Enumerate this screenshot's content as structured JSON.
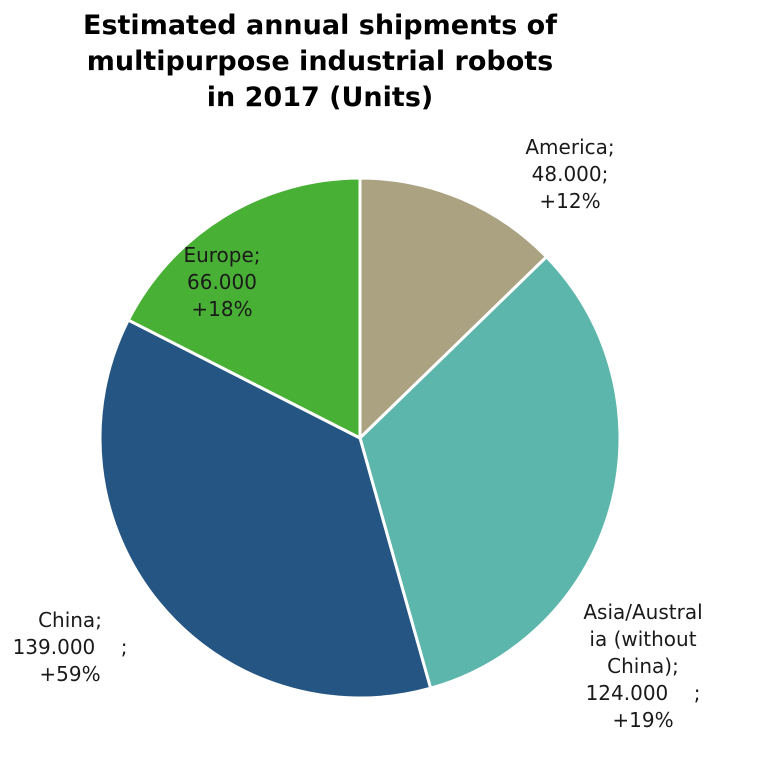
{
  "chart_data": {
    "type": "pie",
    "title": "Estimated annual shipments of multipurpose industrial robots in 2017 (Units)",
    "title_lines": [
      "Estimated annual shipments of",
      "multipurpose industrial robots",
      "in 2017 (Units)"
    ],
    "slices": [
      {
        "category": "America",
        "value": 48000,
        "value_label": "48.000",
        "change": "+12%",
        "color": "#aba282",
        "label_lines": [
          "America;",
          "48.000;",
          "+12%"
        ]
      },
      {
        "category": "Asia/Australia (without China)",
        "value": 124000,
        "value_label": "124.000",
        "change": "+19%",
        "color": "#5cb6ab",
        "label_lines": [
          "Asia/Austral",
          "ia (without",
          "China);",
          "124.000    ;",
          "+19%"
        ]
      },
      {
        "category": "China",
        "value": 139000,
        "value_label": "139.000",
        "change": "+59%",
        "color": "#245583",
        "label_lines": [
          "China;",
          "139.000    ;",
          "+59%"
        ]
      },
      {
        "category": "Europe",
        "value": 66000,
        "value_label": "66.000",
        "change": "+18%",
        "color": "#49b036",
        "label_lines": [
          "Europe;",
          "66.000",
          "+18%"
        ]
      }
    ]
  }
}
